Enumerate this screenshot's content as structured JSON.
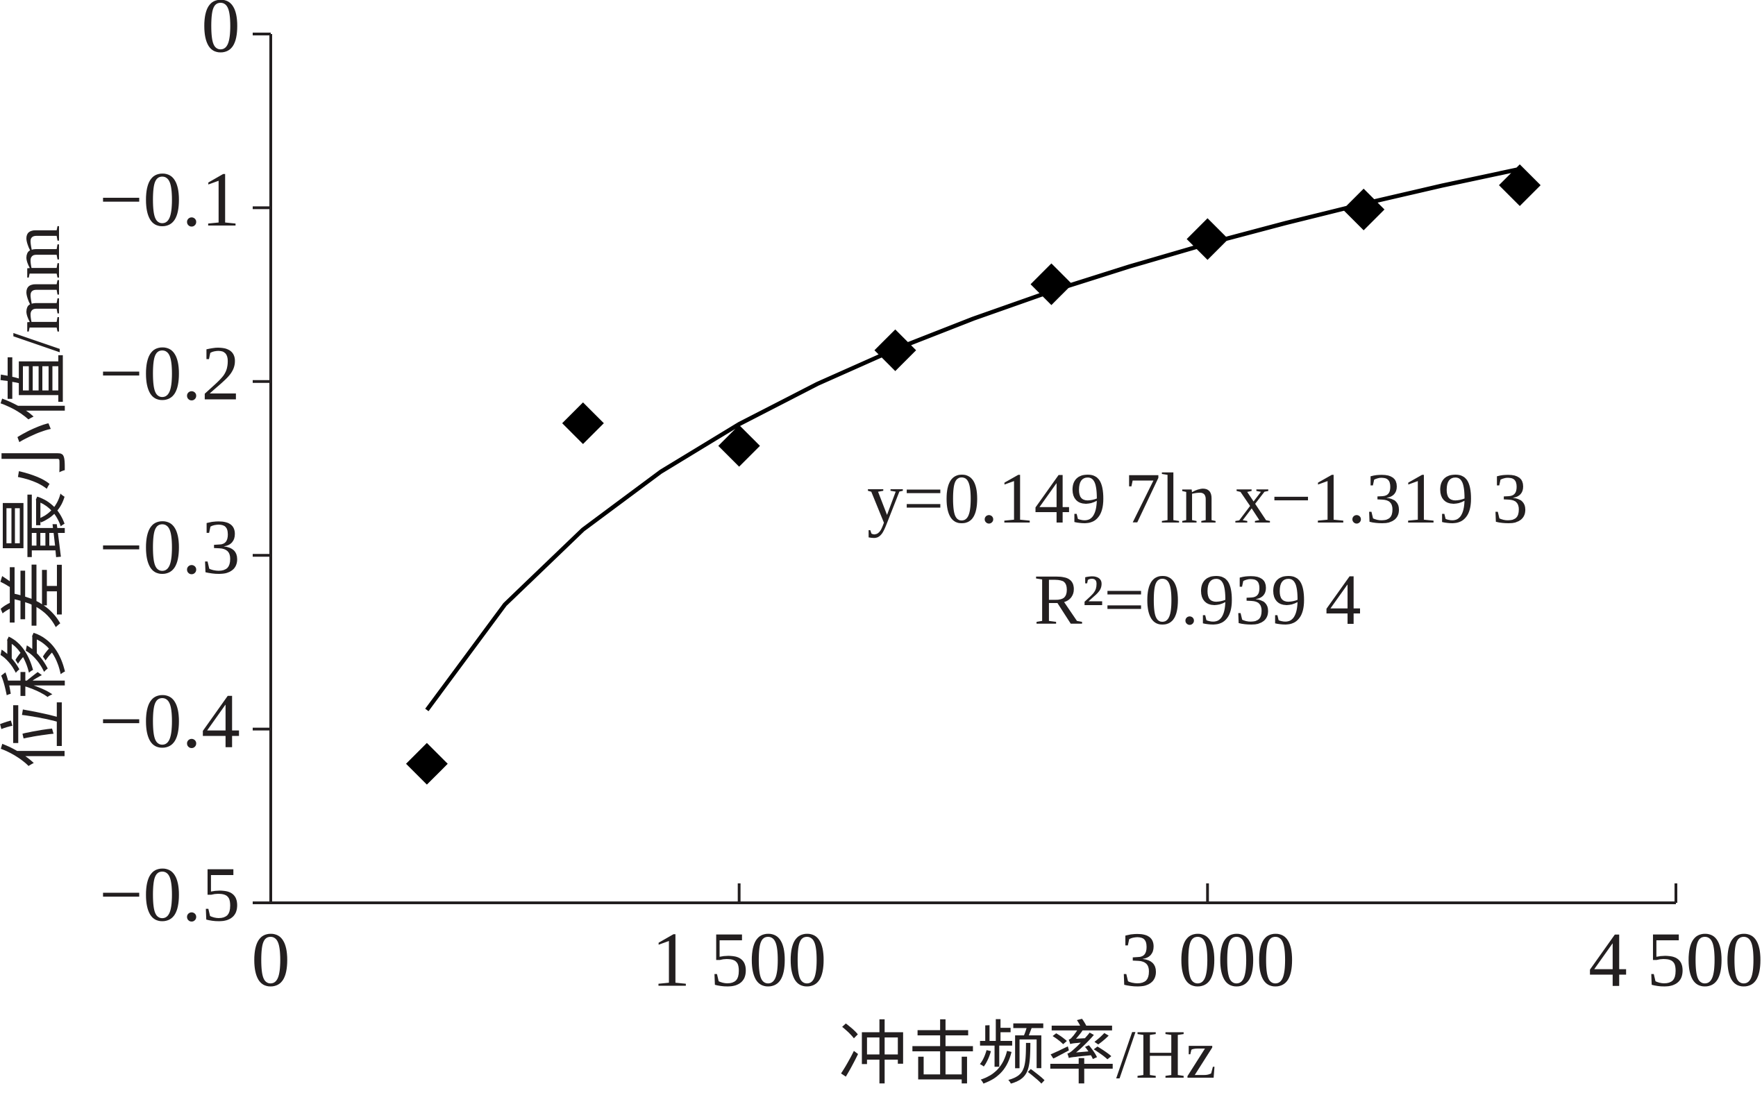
{
  "chart_data": {
    "type": "scatter",
    "x_label": "冲击频率/Hz",
    "y_label": "位移差最小值/mm",
    "x": [
      500,
      1000,
      1500,
      2000,
      2500,
      3000,
      3500,
      4000
    ],
    "values": [
      -0.42,
      -0.224,
      -0.237,
      -0.182,
      -0.144,
      -0.118,
      -0.101,
      -0.087
    ],
    "color": "#000000",
    "trendline": {
      "x": [
        500,
        750,
        1000,
        1250,
        1500,
        1750,
        2000,
        2250,
        2500,
        2750,
        3000,
        3250,
        3500,
        3750,
        4000
      ],
      "values": [
        -0.389,
        -0.3283,
        -0.2852,
        -0.2518,
        -0.2245,
        -0.2014,
        -0.1814,
        -0.1638,
        -0.148,
        -0.1338,
        -0.1207,
        -0.1088,
        -0.0977,
        -0.0873,
        -0.0777
      ]
    },
    "annotations": [
      "y=0.149 7ln x−1.319 3",
      "R²=0.939 4"
    ],
    "xlim": [
      0,
      4500
    ],
    "ylim": [
      -0.5,
      0
    ],
    "xticks": [
      0,
      {
        "value": 1500,
        "label": "1 500"
      },
      {
        "value": 3000,
        "label": "3 000"
      },
      {
        "value": 4500,
        "label": "4 500"
      }
    ],
    "yticks": [
      0,
      {
        "value": -0.1,
        "label": "−0.1"
      },
      {
        "value": -0.2,
        "label": "−0.2"
      },
      {
        "value": -0.3,
        "label": "−0.3"
      },
      {
        "value": -0.4,
        "label": "−0.4"
      },
      {
        "value": -0.5,
        "label": "−0.5"
      }
    ],
    "grid": false
  }
}
